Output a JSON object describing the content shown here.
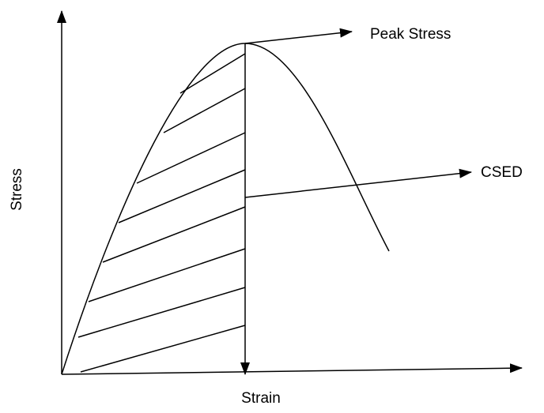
{
  "labels": {
    "peak": "Peak Stress",
    "csed": "CSED",
    "y_axis": "Stress",
    "x_axis": "Strain"
  }
}
